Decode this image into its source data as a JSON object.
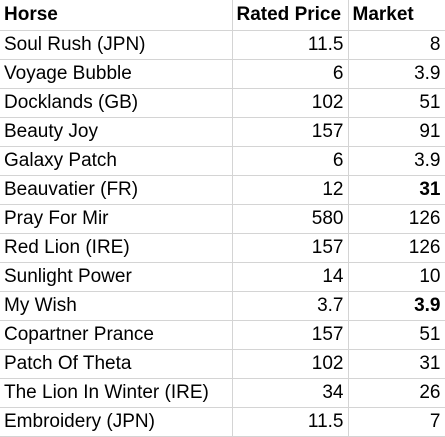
{
  "headers": {
    "horse": "Horse",
    "rated_price": "Rated Price",
    "market": "Market"
  },
  "rows": [
    {
      "horse": "Soul Rush (JPN)",
      "rated_price": "11.5",
      "market": "8",
      "market_bold": false
    },
    {
      "horse": "Voyage Bubble",
      "rated_price": "6",
      "market": "3.9",
      "market_bold": false
    },
    {
      "horse": "Docklands (GB)",
      "rated_price": "102",
      "market": "51",
      "market_bold": false
    },
    {
      "horse": "Beauty Joy",
      "rated_price": "157",
      "market": "91",
      "market_bold": false
    },
    {
      "horse": "Galaxy Patch",
      "rated_price": "6",
      "market": "3.9",
      "market_bold": false
    },
    {
      "horse": "Beauvatier (FR)",
      "rated_price": "12",
      "market": "31",
      "market_bold": true
    },
    {
      "horse": "Pray For Mir",
      "rated_price": "580",
      "market": "126",
      "market_bold": false
    },
    {
      "horse": "Red Lion (IRE)",
      "rated_price": "157",
      "market": "126",
      "market_bold": false
    },
    {
      "horse": "Sunlight Power",
      "rated_price": "14",
      "market": "10",
      "market_bold": false
    },
    {
      "horse": "My Wish",
      "rated_price": "3.7",
      "market": "3.9",
      "market_bold": true
    },
    {
      "horse": "Copartner Prance",
      "rated_price": "157",
      "market": "51",
      "market_bold": false
    },
    {
      "horse": "Patch Of Theta",
      "rated_price": "102",
      "market": "31",
      "market_bold": false
    },
    {
      "horse": "The Lion In Winter (IRE)",
      "rated_price": "34",
      "market": "26",
      "market_bold": false
    },
    {
      "horse": "Embroidery (JPN)",
      "rated_price": "11.5",
      "market": "7",
      "market_bold": false
    }
  ]
}
